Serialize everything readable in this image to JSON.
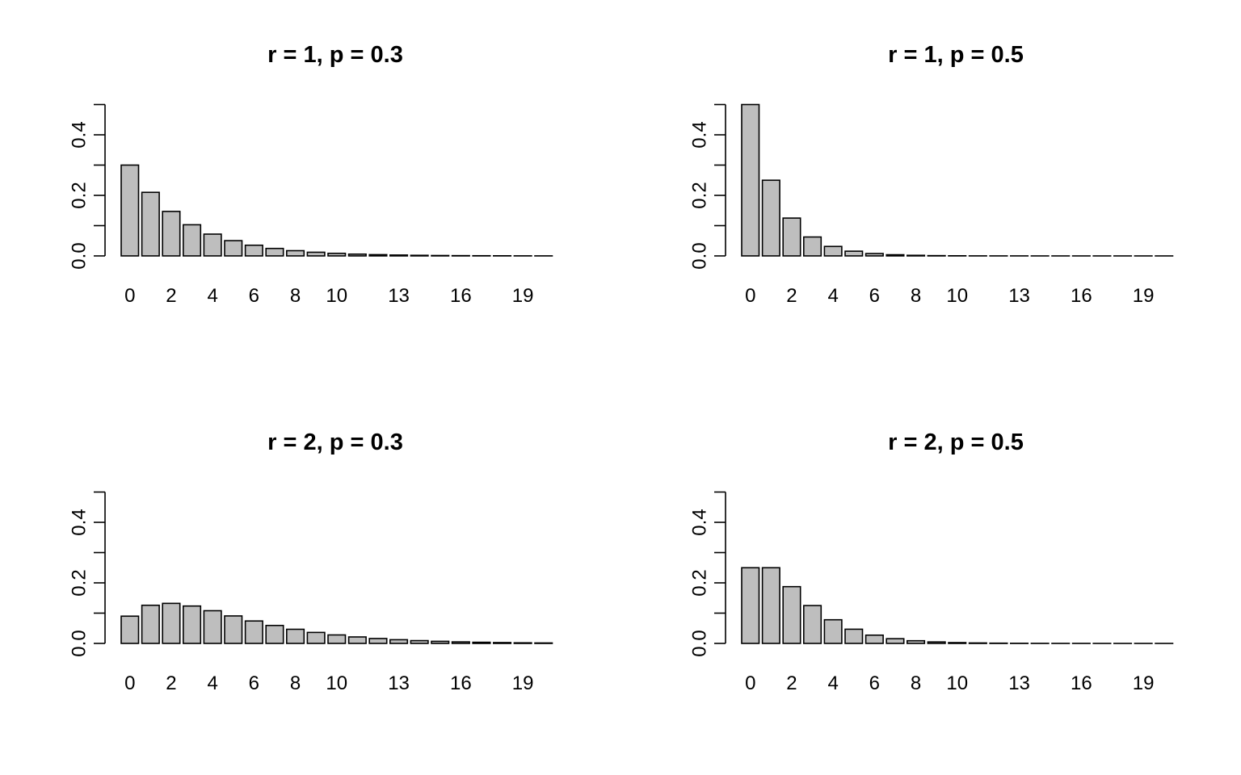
{
  "chart_data": [
    {
      "type": "bar",
      "title": "r = 1,  p = 0.3",
      "xlabel": "",
      "ylabel": "",
      "categories": [
        0,
        1,
        2,
        3,
        4,
        5,
        6,
        7,
        8,
        9,
        10,
        11,
        12,
        13,
        14,
        15,
        16,
        17,
        18,
        19,
        20
      ],
      "x_tick_labels": [
        "0",
        "2",
        "4",
        "6",
        "8",
        "10",
        "13",
        "16",
        "19"
      ],
      "values": [
        0.3,
        0.21,
        0.147,
        0.1029,
        0.072,
        0.0504,
        0.0353,
        0.0247,
        0.0173,
        0.0121,
        0.0085,
        0.0059,
        0.0042,
        0.0029,
        0.002,
        0.0014,
        0.001,
        0.0007,
        0.0005,
        0.0003,
        0.0002
      ],
      "ylim": [
        0,
        0.5
      ],
      "y_ticks": [
        0.0,
        0.1,
        0.2,
        0.3,
        0.4,
        0.5
      ],
      "y_tick_labels": [
        "0.0",
        "0.2",
        "0.4"
      ],
      "bar_color": "#bebebe"
    },
    {
      "type": "bar",
      "title": "r = 1,  p = 0.5",
      "xlabel": "",
      "ylabel": "",
      "categories": [
        0,
        1,
        2,
        3,
        4,
        5,
        6,
        7,
        8,
        9,
        10,
        11,
        12,
        13,
        14,
        15,
        16,
        17,
        18,
        19,
        20
      ],
      "x_tick_labels": [
        "0",
        "2",
        "4",
        "6",
        "8",
        "10",
        "13",
        "16",
        "19"
      ],
      "values": [
        0.5,
        0.25,
        0.125,
        0.0625,
        0.0313,
        0.0156,
        0.0078,
        0.0039,
        0.002,
        0.001,
        0.0005,
        0.0002,
        0.0001,
        0.0001,
        0,
        0,
        0,
        0,
        0,
        0,
        0
      ],
      "ylim": [
        0,
        0.5
      ],
      "y_ticks": [
        0.0,
        0.1,
        0.2,
        0.3,
        0.4,
        0.5
      ],
      "y_tick_labels": [
        "0.0",
        "0.2",
        "0.4"
      ],
      "bar_color": "#bebebe"
    },
    {
      "type": "bar",
      "title": "r = 2,  p = 0.3",
      "xlabel": "",
      "ylabel": "",
      "categories": [
        0,
        1,
        2,
        3,
        4,
        5,
        6,
        7,
        8,
        9,
        10,
        11,
        12,
        13,
        14,
        15,
        16,
        17,
        18,
        19,
        20
      ],
      "x_tick_labels": [
        "0",
        "2",
        "4",
        "6",
        "8",
        "10",
        "13",
        "16",
        "19"
      ],
      "values": [
        0.09,
        0.126,
        0.1323,
        0.1235,
        0.108,
        0.0908,
        0.0741,
        0.0593,
        0.0467,
        0.0363,
        0.028,
        0.0214,
        0.0162,
        0.0122,
        0.0092,
        0.0069,
        0.0051,
        0.0038,
        0.0028,
        0.002,
        0.0015
      ],
      "ylim": [
        0,
        0.5
      ],
      "y_ticks": [
        0.0,
        0.1,
        0.2,
        0.3,
        0.4,
        0.5
      ],
      "y_tick_labels": [
        "0.0",
        "0.2",
        "0.4"
      ],
      "bar_color": "#bebebe"
    },
    {
      "type": "bar",
      "title": "r = 2,  p = 0.5",
      "xlabel": "",
      "ylabel": "",
      "categories": [
        0,
        1,
        2,
        3,
        4,
        5,
        6,
        7,
        8,
        9,
        10,
        11,
        12,
        13,
        14,
        15,
        16,
        17,
        18,
        19,
        20
      ],
      "x_tick_labels": [
        "0",
        "2",
        "4",
        "6",
        "8",
        "10",
        "13",
        "16",
        "19"
      ],
      "values": [
        0.25,
        0.25,
        0.1875,
        0.125,
        0.0781,
        0.0469,
        0.0273,
        0.0156,
        0.0088,
        0.0049,
        0.0027,
        0.0015,
        0.0008,
        0.0004,
        0.0002,
        0.0001,
        0.0001,
        0,
        0,
        0,
        0
      ],
      "ylim": [
        0,
        0.5
      ],
      "y_ticks": [
        0.0,
        0.1,
        0.2,
        0.3,
        0.4,
        0.5
      ],
      "y_tick_labels": [
        "0.0",
        "0.2",
        "0.4"
      ],
      "bar_color": "#bebebe"
    }
  ]
}
